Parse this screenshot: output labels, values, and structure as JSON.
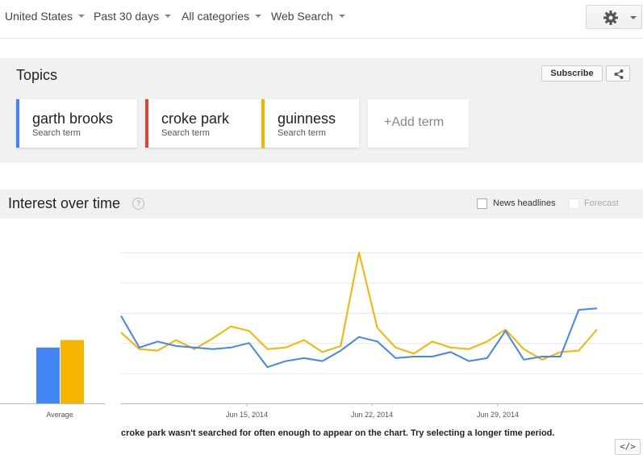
{
  "filters": {
    "region": "United States",
    "time": "Past 30 days",
    "category": "All categories",
    "search_type": "Web Search"
  },
  "topics": {
    "title": "Topics",
    "subscribe_label": "Subscribe",
    "terms": [
      {
        "term": "garth brooks",
        "sub": "Search term",
        "color": "#4285f4"
      },
      {
        "term": "croke park",
        "sub": "Search term",
        "color": "#db4437"
      },
      {
        "term": "guinness",
        "sub": "Search term",
        "color": "#f4b400"
      }
    ],
    "add_term_label": "+Add term"
  },
  "interest": {
    "title": "Interest over time",
    "help_glyph": "?",
    "news_headlines_label": "News headlines",
    "forecast_label": "Forecast",
    "warning": "croke park wasn't searched for often enough to appear on the chart. Try selecting a longer time period.",
    "embed_label": "</>"
  },
  "chart_data": {
    "type": "line",
    "x_tick_labels": [
      "Jun 15, 2014",
      "Jun 22, 2014",
      "Jun 29, 2014"
    ],
    "average_label": "Average",
    "grid": true,
    "series": [
      {
        "name": "garth brooks",
        "color": "#4285f4",
        "values": [
          58,
          37,
          41,
          38,
          37,
          36,
          37,
          40,
          24,
          28,
          30,
          28,
          35,
          44,
          41,
          30,
          31,
          31,
          34,
          28,
          30,
          48,
          29,
          31,
          31,
          62,
          63
        ],
        "average": 37
      },
      {
        "name": "guinness",
        "color": "#f4b400",
        "values": [
          47,
          36,
          35,
          42,
          36,
          43,
          51,
          48,
          36,
          37,
          42,
          34,
          38,
          100,
          50,
          37,
          33,
          41,
          37,
          36,
          41,
          49,
          36,
          29,
          34,
          35,
          49
        ],
        "average": 42
      }
    ],
    "ylim": [
      0,
      100
    ]
  }
}
